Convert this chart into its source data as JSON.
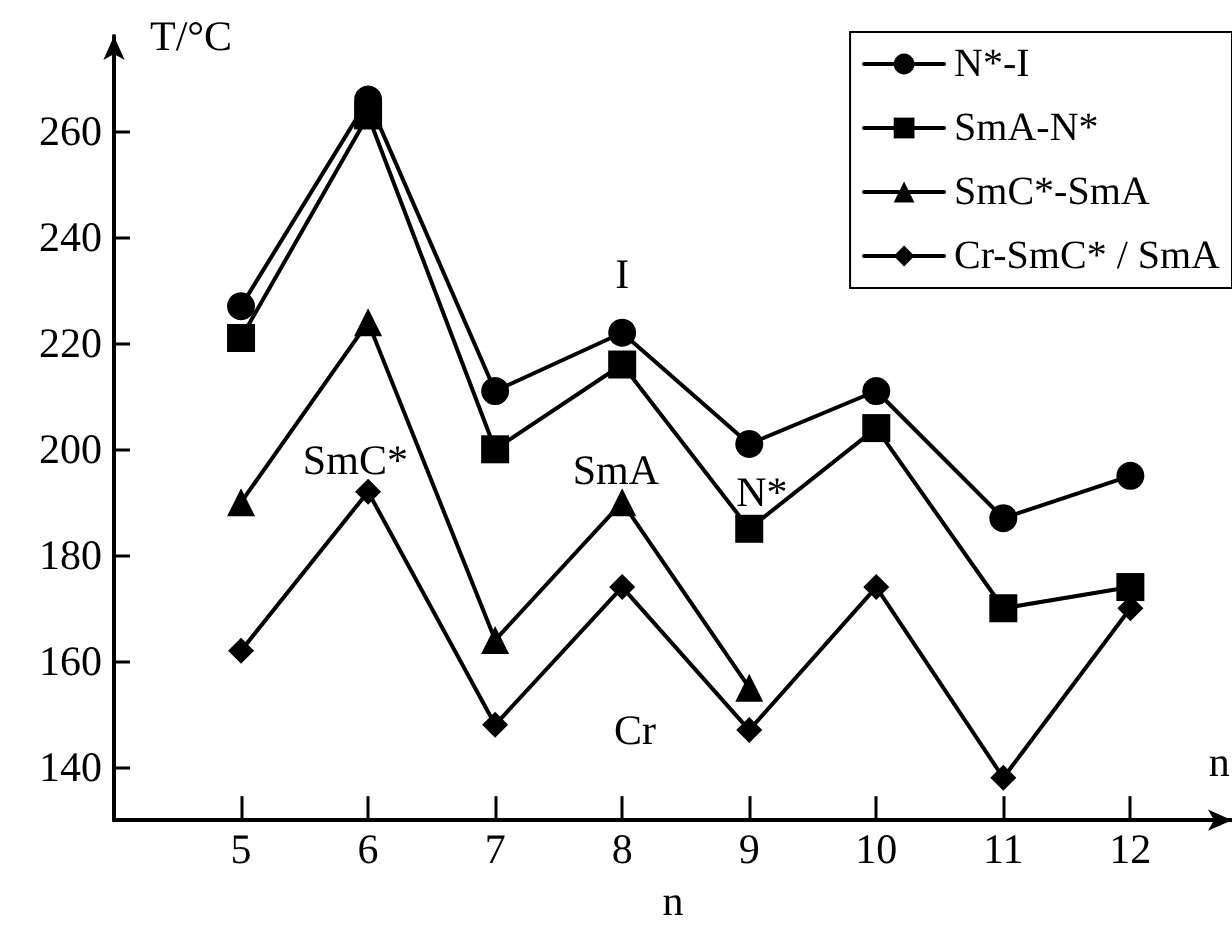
{
  "chart_data": {
    "type": "line",
    "xlabel": "n",
    "ylabel": "T/°C",
    "x": [
      5,
      6,
      7,
      8,
      9,
      10,
      11,
      12
    ],
    "series": [
      {
        "name": "N*-I",
        "color": "#000000",
        "marker": "circle",
        "values": [
          227,
          266,
          211,
          222,
          201,
          211,
          187,
          195
        ]
      },
      {
        "name": "SmA-N*",
        "color": "#000000",
        "marker": "square",
        "values": [
          221,
          263,
          200,
          216,
          185,
          204,
          170,
          174
        ]
      },
      {
        "name": "SmC*-SmA",
        "color": "#000000",
        "marker": "triangle",
        "values": [
          190,
          224,
          164,
          190,
          155,
          null,
          null,
          null
        ]
      },
      {
        "name": "Cr-SmC* / SmA",
        "color": "#000000",
        "marker": "diamond",
        "values": [
          162,
          192,
          148,
          174,
          147,
          174,
          138,
          170
        ]
      }
    ],
    "xlim": [
      4,
      12.8
    ],
    "xticks": [
      5,
      6,
      7,
      8,
      9,
      10,
      11,
      12
    ],
    "ylim": [
      130,
      278
    ],
    "yticks": [
      140,
      160,
      180,
      200,
      220,
      240,
      260
    ],
    "grid": false,
    "legend": "top right",
    "line_style": "solid",
    "annotations": [
      "I",
      "SmC*",
      "SmA",
      "N*",
      "Cr",
      "n"
    ]
  }
}
